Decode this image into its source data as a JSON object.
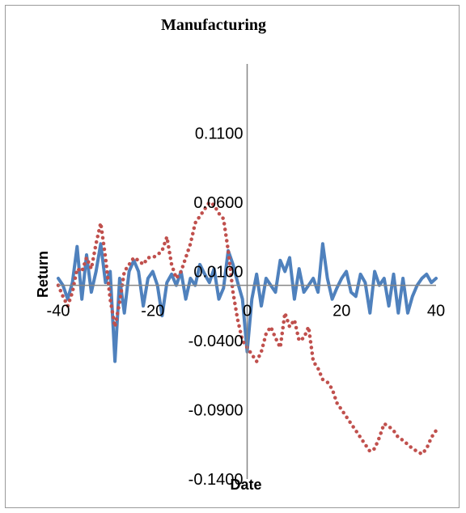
{
  "chart_data": {
    "type": "line",
    "title": "Manufacturing",
    "xlabel": "Date",
    "ylabel": "Return",
    "xlim": [
      -40,
      40
    ],
    "ylim": [
      -0.14,
      0.16
    ],
    "x_ticks": [
      -40,
      -20,
      0,
      20,
      40
    ],
    "x_tick_labels": [
      "-40",
      "-20",
      "0",
      "20",
      "40"
    ],
    "y_ticks": [
      -0.14,
      -0.09,
      -0.04,
      0.01,
      0.06,
      0.11
    ],
    "y_tick_labels": [
      "-0.1400",
      "-0.0900",
      "-0.0400",
      "0.0100",
      "0.0600",
      "0.1100"
    ],
    "grid": false,
    "legend": "none",
    "colors": {
      "solid": "#4f81bd",
      "dotted": "#c0504d",
      "axis": "#868686",
      "frame": "#9a9a9a"
    },
    "series": [
      {
        "style": "solid",
        "x": [
          -40,
          -39,
          -38,
          -37,
          -36,
          -35,
          -34,
          -33,
          -32,
          -31,
          -30,
          -29,
          -28,
          -27,
          -26,
          -25,
          -24,
          -23,
          -22,
          -21,
          -20,
          -19,
          -18,
          -17,
          -16,
          -15,
          -14,
          -13,
          -12,
          -11,
          -10,
          -9,
          -8,
          -7,
          -6,
          -5,
          -4,
          -3,
          -2,
          -1,
          0,
          1,
          2,
          3,
          4,
          5,
          6,
          7,
          8,
          9,
          10,
          11,
          12,
          13,
          14,
          15,
          16,
          17,
          18,
          19,
          20,
          21,
          22,
          23,
          24,
          25,
          26,
          27,
          28,
          29,
          30,
          31,
          32,
          33,
          34,
          35,
          36,
          37,
          38,
          39,
          40
        ],
        "values": [
          0.005,
          0.0,
          -0.01,
          0.002,
          0.028,
          -0.01,
          0.022,
          -0.005,
          0.01,
          0.03,
          0.002,
          0.01,
          -0.055,
          0.005,
          -0.02,
          0.01,
          0.018,
          0.01,
          -0.015,
          0.005,
          0.01,
          0.0,
          -0.022,
          0.002,
          0.008,
          0.0,
          0.01,
          -0.01,
          0.005,
          0.0,
          0.015,
          0.008,
          0.002,
          0.012,
          -0.01,
          -0.002,
          0.025,
          0.015,
          0.002,
          -0.01,
          -0.048,
          -0.01,
          0.008,
          -0.015,
          0.005,
          0.0,
          -0.005,
          0.018,
          0.01,
          0.02,
          -0.01,
          0.012,
          -0.005,
          0.0,
          0.005,
          -0.005,
          0.03,
          0.005,
          -0.01,
          -0.002,
          0.005,
          0.01,
          -0.005,
          -0.008,
          0.008,
          0.002,
          -0.02,
          0.01,
          0.0,
          0.005,
          -0.015,
          0.008,
          -0.02,
          0.005,
          -0.02,
          -0.008,
          0.0,
          0.005,
          0.008,
          0.002,
          0.005
        ]
      },
      {
        "style": "dotted",
        "x": [
          -40,
          -39,
          -38,
          -37,
          -36,
          -35,
          -34,
          -33,
          -32,
          -31,
          -30,
          -29,
          -28,
          -27,
          -26,
          -25,
          -24,
          -23,
          -22,
          -21,
          -20,
          -19,
          -18,
          -17,
          -16,
          -15,
          -14,
          -13,
          -12,
          -11,
          -10,
          -9,
          -8,
          -7,
          -6,
          -5,
          -4,
          -3,
          -2,
          -1,
          0,
          1,
          2,
          3,
          4,
          5,
          6,
          7,
          8,
          9,
          10,
          11,
          12,
          13,
          14,
          15,
          16,
          17,
          18,
          19,
          20,
          21,
          22,
          23,
          24,
          25,
          26,
          27,
          28,
          29,
          30,
          31,
          32,
          33,
          34,
          35,
          36,
          37,
          38,
          39,
          40
        ],
        "values": [
          0.0,
          -0.008,
          -0.015,
          -0.005,
          0.012,
          0.01,
          0.02,
          0.012,
          0.03,
          0.045,
          0.02,
          -0.01,
          -0.03,
          -0.012,
          0.01,
          0.015,
          0.02,
          0.018,
          0.015,
          0.02,
          0.02,
          0.022,
          0.025,
          0.035,
          0.015,
          0.005,
          0.01,
          0.02,
          0.03,
          0.045,
          0.05,
          0.055,
          0.06,
          0.058,
          0.052,
          0.048,
          0.025,
          -0.005,
          -0.025,
          -0.04,
          -0.045,
          -0.05,
          -0.055,
          -0.048,
          -0.035,
          -0.03,
          -0.038,
          -0.045,
          -0.02,
          -0.03,
          -0.025,
          -0.04,
          -0.038,
          -0.03,
          -0.055,
          -0.06,
          -0.068,
          -0.07,
          -0.075,
          -0.085,
          -0.09,
          -0.095,
          -0.1,
          -0.105,
          -0.11,
          -0.115,
          -0.12,
          -0.118,
          -0.11,
          -0.1,
          -0.102,
          -0.105,
          -0.11,
          -0.112,
          -0.115,
          -0.118,
          -0.12,
          -0.122,
          -0.118,
          -0.11,
          -0.105
        ]
      }
    ]
  }
}
